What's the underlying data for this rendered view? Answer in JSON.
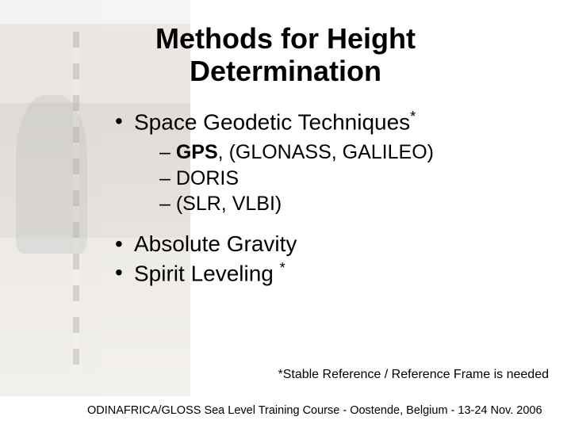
{
  "title_line1": "Methods for Height",
  "title_line2": "Determination",
  "bullets": {
    "b1": {
      "label": "Space Geodetic Techniques",
      "star": "*"
    },
    "b1_sub": {
      "s1_dash": "– ",
      "s1_bold": "GPS",
      "s1_rest": " (GLONASS, GALILEO)",
      "s2": "– DORIS",
      "s3": "– (SLR, VLBI)"
    },
    "b2": {
      "label": "Absolute Gravity"
    },
    "b3": {
      "label": "Spirit Leveling ",
      "star": "*"
    }
  },
  "footnote": "*Stable Reference / Reference Frame is needed",
  "credit": "ODINAFRICA/GLOSS Sea Level Training Course - Oostende, Belgium - 13-24 Nov. 2006",
  "colors": {
    "text": "#000000",
    "background": "#ffffff"
  }
}
